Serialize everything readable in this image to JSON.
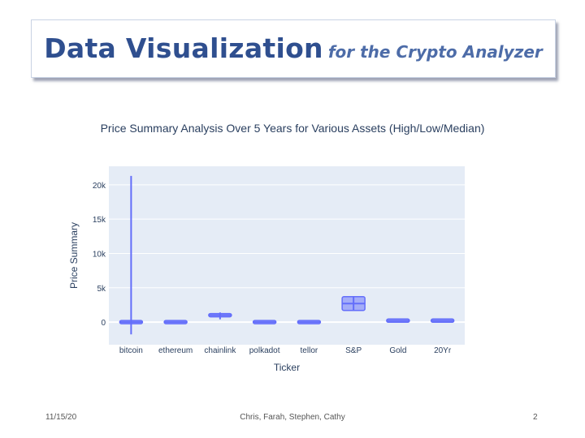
{
  "slide": {
    "title_main": "Data Visualization",
    "title_sub": "for the Crypto Analyzer",
    "footer_date": "11/15/20",
    "footer_authors": "Chris, Farah, Stephen, Cathy",
    "footer_page": "2"
  },
  "chart_data": {
    "type": "box",
    "title": "Price Summary Analysis Over 5 Years for Various Assets (High/Low/Median)",
    "xlabel": "Ticker",
    "ylabel": "Price Summary",
    "categories": [
      "bitcoin",
      "ethereum",
      "chainlink",
      "polkadot",
      "tellor",
      "S&P",
      "Gold",
      "20Yr"
    ],
    "yticks": [
      0,
      5000,
      10000,
      15000,
      20000
    ],
    "ytick_labels": [
      "0",
      "5k",
      "10k",
      "15k",
      "20k"
    ],
    "ylim": [
      -3300,
      22700
    ],
    "series_color": "#636efa",
    "boxes": [
      {
        "name": "bitcoin",
        "low": -1800,
        "q1": 0,
        "median": 0,
        "q3": 0,
        "high": 21300
      },
      {
        "name": "ethereum",
        "low": -30,
        "q1": -30,
        "median": 0,
        "q3": 30,
        "high": 40
      },
      {
        "name": "chainlink",
        "low": 400,
        "q1": 800,
        "median": 1000,
        "q3": 1200,
        "high": 1400
      },
      {
        "name": "polkadot",
        "low": 0,
        "q1": 0,
        "median": 0,
        "q3": 0,
        "high": 0
      },
      {
        "name": "tellor",
        "low": 0,
        "q1": 0,
        "median": 0,
        "q3": 0,
        "high": 0
      },
      {
        "name": "S&P",
        "low": 1700,
        "q1": 1700,
        "median": 2700,
        "q3": 3700,
        "high": 3700
      },
      {
        "name": "Gold",
        "low": 150,
        "q1": 180,
        "median": 200,
        "q3": 250,
        "high": 300
      },
      {
        "name": "20Yr",
        "low": 150,
        "q1": 180,
        "median": 200,
        "q3": 250,
        "high": 300
      }
    ]
  }
}
